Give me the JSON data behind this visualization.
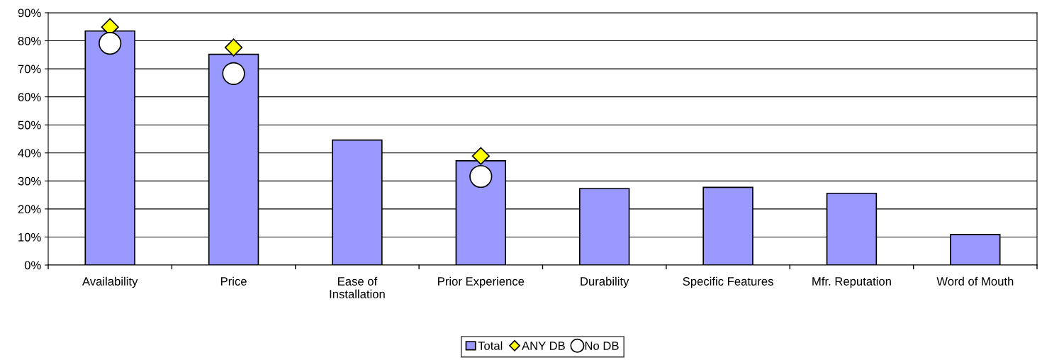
{
  "chart_data": {
    "type": "bar",
    "categories": [
      "Availability",
      "Price",
      "Ease of\nInstallation",
      "Prior Experience",
      "Durability",
      "Specific Features",
      "Mfr. Reputation",
      "Word of Mouth"
    ],
    "series": [
      {
        "name": "Total",
        "color": "#9999ff",
        "values": [
          83.5,
          75.2,
          44.6,
          37.2,
          27.3,
          27.7,
          25.6,
          10.9
        ]
      },
      {
        "name": "ANY DB",
        "type": "scatter",
        "marker": "diamond",
        "color": "#ffff00",
        "values": [
          84.9,
          77.6,
          null,
          38.9,
          null,
          null,
          null,
          null
        ]
      },
      {
        "name": "No DB",
        "type": "scatter",
        "marker": "circle",
        "color": "#ffffff",
        "values": [
          79.1,
          68.3,
          null,
          31.6,
          null,
          null,
          null,
          null
        ]
      }
    ],
    "ylim": [
      0,
      90
    ],
    "yticks": [
      {
        "value": 0,
        "label": "0%"
      },
      {
        "value": 10,
        "label": "10%"
      },
      {
        "value": 20,
        "label": "20%"
      },
      {
        "value": 30,
        "label": "30%"
      },
      {
        "value": 40,
        "label": "40%"
      },
      {
        "value": 50,
        "label": "50%"
      },
      {
        "value": 60,
        "label": "60%"
      },
      {
        "value": 70,
        "label": "70%"
      },
      {
        "value": 80,
        "label": "80%"
      },
      {
        "value": 90,
        "label": "90%"
      }
    ],
    "grid": "y",
    "legend": "bottom"
  }
}
